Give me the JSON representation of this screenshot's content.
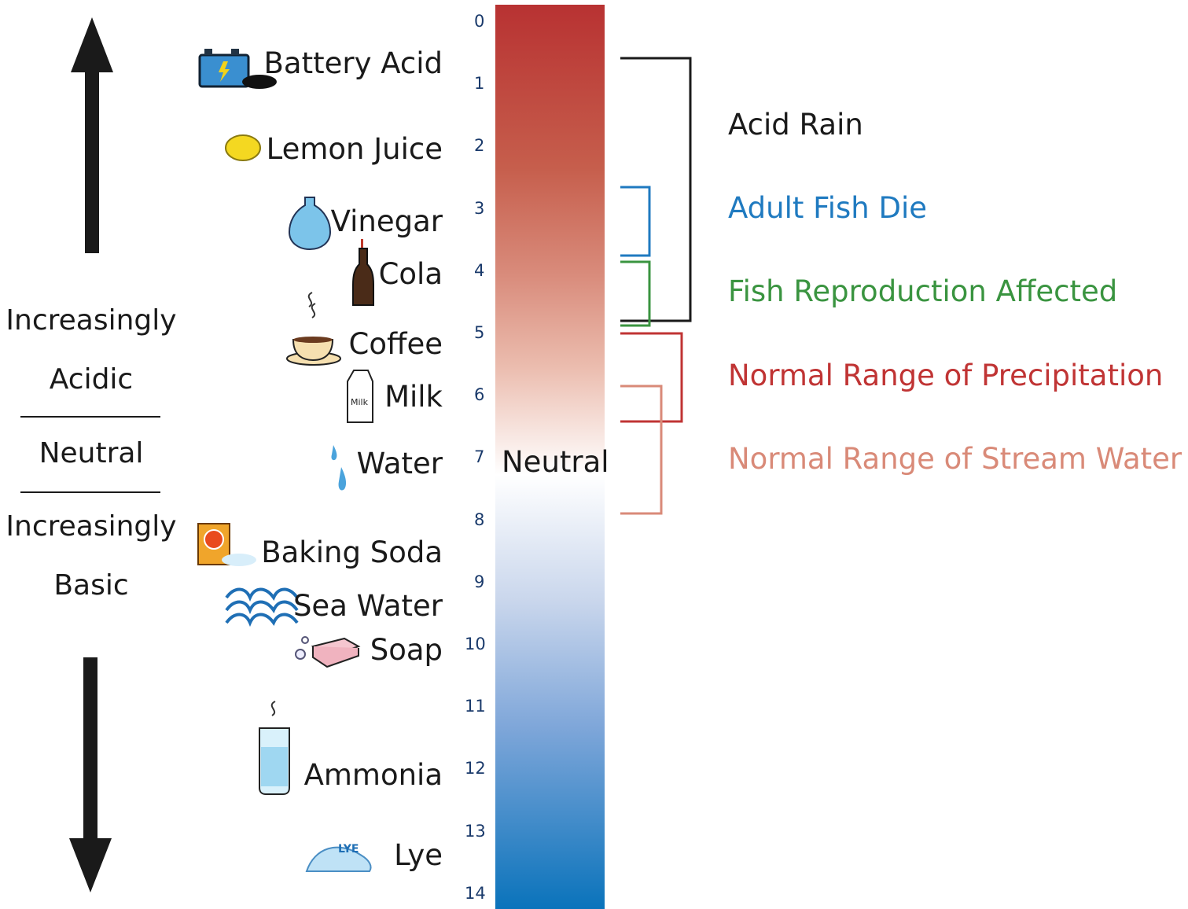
{
  "scale": {
    "min": 0,
    "max": 14,
    "ticks": [
      "0",
      "1",
      "2",
      "3",
      "4",
      "5",
      "6",
      "7",
      "8",
      "9",
      "10",
      "11",
      "12",
      "13",
      "14"
    ],
    "neutral_label": "Neutral",
    "colors": {
      "acid": "#b83232",
      "neutral": "#ffffff",
      "base": "#0a73bb"
    }
  },
  "side": {
    "acidic_line1": "Increasingly",
    "acidic_line2": "Acidic",
    "neutral": "Neutral",
    "basic_line1": "Increasingly",
    "basic_line2": "Basic"
  },
  "substances": [
    {
      "name": "Battery Acid",
      "ph": 0.6,
      "icon": "battery-icon"
    },
    {
      "name": "Lemon Juice",
      "ph": 2.0,
      "icon": "lemon-icon"
    },
    {
      "name": "Vinegar",
      "ph": 3.2,
      "icon": "vinegar-bottle-icon"
    },
    {
      "name": "Cola",
      "ph": 4.0,
      "icon": "cola-bottle-icon"
    },
    {
      "name": "Coffee",
      "ph": 5.1,
      "icon": "coffee-cup-icon"
    },
    {
      "name": "Milk",
      "ph": 6.0,
      "icon": "milk-carton-icon"
    },
    {
      "name": "Water",
      "ph": 7.0,
      "icon": "water-drop-icon"
    },
    {
      "name": "Baking Soda",
      "ph": 8.5,
      "icon": "baking-soda-box-icon"
    },
    {
      "name": "Sea Water",
      "ph": 9.3,
      "icon": "wave-icon"
    },
    {
      "name": "Soap",
      "ph": 10.0,
      "icon": "soap-bar-icon"
    },
    {
      "name": "Ammonia",
      "ph": 12.0,
      "icon": "ammonia-beaker-icon"
    },
    {
      "name": "Lye",
      "ph": 13.3,
      "icon": "lye-pile-icon"
    }
  ],
  "ranges": [
    {
      "label": "Acid Rain",
      "from": 0.6,
      "to": 4.8,
      "color": "#1a1a1a"
    },
    {
      "label": "Adult Fish Die",
      "from": 2.8,
      "to": 3.9,
      "color": "#1f7ac0"
    },
    {
      "label": "Fish Reproduction Affected",
      "from": 3.9,
      "to": 4.8,
      "color": "#3a9440"
    },
    {
      "label": "Normal Range of Precipitation",
      "from": 5.0,
      "to": 6.5,
      "color": "#c03434"
    },
    {
      "label": "Normal Range of Stream Water",
      "from": 6.0,
      "to": 8.0,
      "color": "#d98a78"
    }
  ]
}
